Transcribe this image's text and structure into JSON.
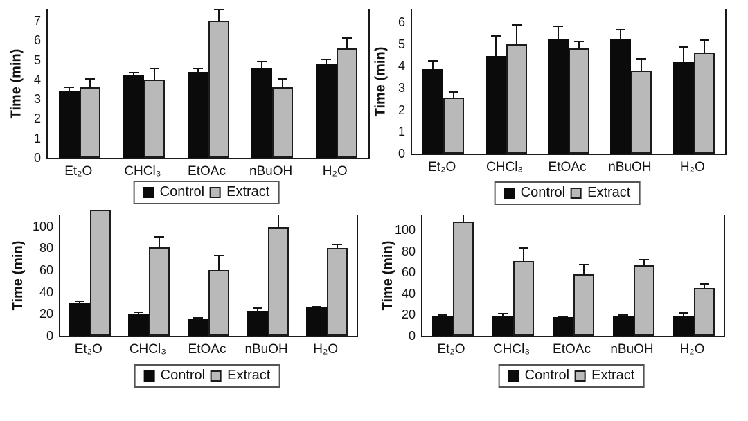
{
  "figure": {
    "colors": {
      "control": "#0b0b0b",
      "extract": "#b9b9b9",
      "axis": "#1a1a1a",
      "background": "#ffffff",
      "text": "#121212"
    }
  },
  "chart_data": [
    {
      "id": "top-left",
      "type": "bar",
      "title": "",
      "xlabel": "",
      "ylabel": "Time (min)",
      "categories": [
        "Et₂O",
        "CHCl₃",
        "EtOAc",
        "nBuOH",
        "H₂O"
      ],
      "yticks": [
        0,
        1,
        2,
        3,
        4,
        5,
        6,
        7
      ],
      "ylim": [
        0,
        7.6
      ],
      "grid": false,
      "legend_position": "bottom",
      "series": [
        {
          "name": "Control",
          "values": [
            3.4,
            4.25,
            4.4,
            4.6,
            4.8
          ],
          "errors": [
            0.25,
            0.15,
            0.2,
            0.35,
            0.25
          ]
        },
        {
          "name": "Extract",
          "values": [
            3.6,
            4.0,
            7.0,
            3.6,
            5.6
          ],
          "errors": [
            0.45,
            0.6,
            0.6,
            0.45,
            0.55
          ]
        }
      ]
    },
    {
      "id": "top-right",
      "type": "bar",
      "title": "",
      "xlabel": "",
      "ylabel": "Time (min)",
      "categories": [
        "Et₂O",
        "CHCl₃",
        "EtOAc",
        "nBuOH",
        "H₂O"
      ],
      "yticks": [
        0,
        1,
        2,
        3,
        4,
        5,
        6
      ],
      "ylim": [
        0,
        6.6
      ],
      "grid": false,
      "legend_position": "bottom",
      "series": [
        {
          "name": "Control",
          "values": [
            3.9,
            4.45,
            5.2,
            5.2,
            4.2
          ],
          "errors": [
            0.35,
            0.95,
            0.65,
            0.5,
            0.7
          ]
        },
        {
          "name": "Extract",
          "values": [
            2.55,
            5.0,
            4.8,
            3.8,
            4.6
          ],
          "errors": [
            0.3,
            0.9,
            0.35,
            0.55,
            0.6
          ]
        }
      ]
    },
    {
      "id": "bottom-left",
      "type": "bar",
      "title": "",
      "xlabel": "",
      "ylabel": "Time (min)",
      "categories": [
        "Et₂O",
        "CHCl₃",
        "EtOAc",
        "nBuOH",
        "H₂O"
      ],
      "yticks": [
        0,
        20,
        40,
        60,
        80,
        100
      ],
      "ylim": [
        0,
        110
      ],
      "grid": false,
      "legend_position": "bottom",
      "series": [
        {
          "name": "Control",
          "values": [
            30,
            20,
            15,
            23,
            26
          ],
          "errors": [
            2.5,
            2,
            2,
            3,
            1.5
          ]
        },
        {
          "name": "Extract",
          "values": [
            115,
            81,
            60,
            99,
            80
          ],
          "errors": [
            0,
            10,
            14,
            13,
            4
          ]
        }
      ]
    },
    {
      "id": "bottom-right",
      "type": "bar",
      "title": "",
      "xlabel": "",
      "ylabel": "Time (min)",
      "categories": [
        "Et₂O",
        "CHCl₃",
        "EtOAc",
        "nBuOH",
        "H₂O"
      ],
      "yticks": [
        0,
        20,
        40,
        60,
        80,
        100
      ],
      "ylim": [
        0,
        114
      ],
      "grid": false,
      "legend_position": "bottom",
      "series": [
        {
          "name": "Control",
          "values": [
            19,
            18.5,
            17.5,
            18.5,
            19
          ],
          "errors": [
            1.5,
            3,
            1.5,
            1.5,
            3.5
          ]
        },
        {
          "name": "Extract",
          "values": [
            108,
            71,
            58,
            67,
            45
          ],
          "errors": [
            7,
            13,
            10,
            6,
            5
          ]
        }
      ]
    }
  ]
}
